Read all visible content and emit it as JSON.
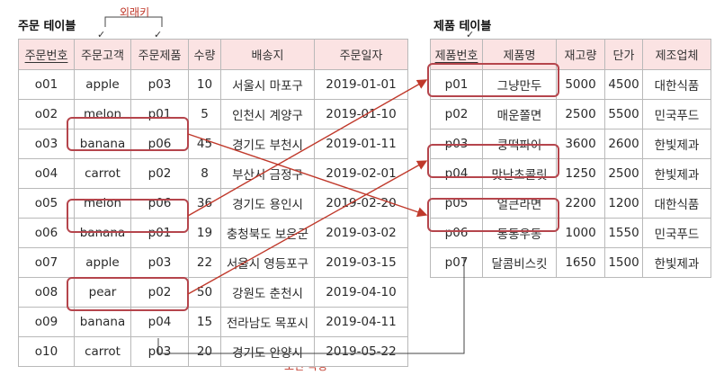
{
  "orders_table": {
    "title": "주문 테이블",
    "columns": [
      "주문번호",
      "주문고객",
      "주문제품",
      "수량",
      "배송지",
      "주문일자"
    ],
    "rows": [
      [
        "o01",
        "apple",
        "p03",
        "10",
        "서울시 마포구",
        "2019-01-01"
      ],
      [
        "o02",
        "melon",
        "p01",
        "5",
        "인천시 계양구",
        "2019-01-10"
      ],
      [
        "o03",
        "banana",
        "p06",
        "45",
        "경기도 부천시",
        "2019-01-11"
      ],
      [
        "o04",
        "carrot",
        "p02",
        "8",
        "부산시 금정구",
        "2019-02-01"
      ],
      [
        "o05",
        "melon",
        "p06",
        "36",
        "경기도 용인시",
        "2019-02-20"
      ],
      [
        "o06",
        "banana",
        "p01",
        "19",
        "충청북도 보은군",
        "2019-03-02"
      ],
      [
        "o07",
        "apple",
        "p03",
        "22",
        "서울시 영등포구",
        "2019-03-15"
      ],
      [
        "o08",
        "pear",
        "p02",
        "50",
        "강원도 춘천시",
        "2019-04-10"
      ],
      [
        "o09",
        "banana",
        "p04",
        "15",
        "전라남도 목포시",
        "2019-04-11"
      ],
      [
        "o10",
        "carrot",
        "p03",
        "20",
        "경기도 안양시",
        "2019-05-22"
      ]
    ]
  },
  "products_table": {
    "title": "제품 테이블",
    "columns": [
      "제품번호",
      "제품명",
      "재고량",
      "단가",
      "제조업체"
    ],
    "rows": [
      [
        "p01",
        "그냥만두",
        "5000",
        "4500",
        "대한식품"
      ],
      [
        "p02",
        "매운쫄면",
        "2500",
        "5500",
        "민국푸드"
      ],
      [
        "p03",
        "쿵떡파이",
        "3600",
        "2600",
        "한빛제과"
      ],
      [
        "p04",
        "맛난초콜릿",
        "1250",
        "2500",
        "한빛제과"
      ],
      [
        "p05",
        "얼큰라면",
        "2200",
        "1200",
        "대한식품"
      ],
      [
        "p06",
        "통통우동",
        "1000",
        "1550",
        "민국푸드"
      ],
      [
        "p07",
        "달콤비스킷",
        "1650",
        "1500",
        "한빛제과"
      ]
    ]
  },
  "labels": {
    "foreign_key": "외래키",
    "join_attribute": "조인 속성",
    "tick_mark": "✓"
  },
  "colors": {
    "header_bg": "#fbe3e3",
    "highlight_bg": "#f4c7c9",
    "box_border": "#b5454c",
    "arrow": "#c0392b",
    "border": "#b9b9b9"
  }
}
